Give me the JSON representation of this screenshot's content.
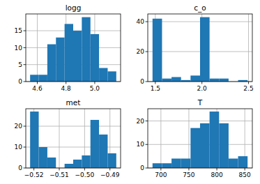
{
  "chart_data": [
    {
      "type": "histogram",
      "title": "logg",
      "color": "#1f77b4",
      "grid": true,
      "bins": [
        4.55,
        4.61,
        4.67,
        4.73,
        4.79,
        4.85,
        4.91,
        4.97,
        5.03,
        5.09,
        5.15
      ],
      "values": [
        2,
        2,
        11,
        13,
        17,
        15,
        19,
        14,
        4,
        3
      ],
      "xlim": [
        4.52,
        5.18
      ],
      "xticks": [
        4.6,
        4.8,
        {
          "value": 5,
          "label": "5.0"
        }
      ],
      "ylim": [
        0,
        19.95
      ],
      "yticks": [
        0,
        5,
        10,
        15
      ]
    },
    {
      "type": "histogram",
      "title": "c_o",
      "color": "#1f77b4",
      "grid": true,
      "bins": [
        1.47,
        1.572,
        1.674,
        1.776,
        1.878,
        1.98,
        2.082,
        2.184,
        2.286,
        2.388,
        2.49
      ],
      "values": [
        42,
        2,
        3,
        1,
        4,
        43,
        2,
        2,
        0,
        1
      ],
      "xlim": [
        1.419,
        2.541
      ],
      "xticks": [
        1.5,
        {
          "value": 2,
          "label": "2.0"
        },
        2.5
      ],
      "ylim": [
        0,
        45.15
      ],
      "yticks": [
        0,
        20,
        40
      ]
    },
    {
      "type": "histogram",
      "title": "met",
      "color": "#1f77b4",
      "grid": true,
      "bins": [
        -0.5215,
        -0.5181,
        -0.5147,
        -0.5113,
        -0.5079,
        -0.5045,
        -0.5011,
        -0.4977,
        -0.4943,
        -0.4909,
        -0.4875
      ],
      "values": [
        27,
        10,
        5,
        0,
        2,
        4,
        6,
        23,
        16,
        7
      ],
      "xlim": [
        -0.5232,
        -0.4858
      ],
      "xticks": [
        {
          "value": -0.52,
          "label": "−0.52"
        },
        {
          "value": -0.51,
          "label": "−0.51"
        },
        {
          "value": -0.5,
          "label": "−0.50"
        },
        {
          "value": -0.49,
          "label": "−0.49"
        }
      ],
      "ylim": [
        0,
        28.35
      ],
      "yticks": [
        0,
        10,
        20
      ]
    },
    {
      "type": "histogram",
      "title": "T",
      "color": "#1f77b4",
      "grid": true,
      "bins": [
        685,
        702,
        719,
        736,
        753,
        770,
        787,
        804,
        821,
        838,
        855
      ],
      "values": [
        2,
        2,
        4,
        4,
        17,
        19,
        24,
        19,
        4,
        5
      ],
      "xlim": [
        676.5,
        863.5
      ],
      "xticks": [
        700,
        750,
        800,
        850
      ],
      "ylim": [
        0,
        25.2
      ],
      "yticks": [
        0,
        10,
        20
      ]
    }
  ]
}
